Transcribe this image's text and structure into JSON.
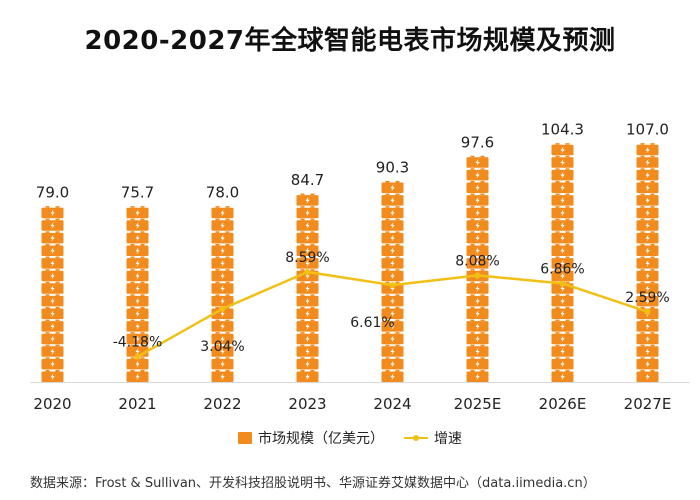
{
  "chart_data": {
    "type": "bar",
    "title": "2020-2027年全球智能电表市场规模及预测",
    "categories": [
      "2020",
      "2021",
      "2022",
      "2023",
      "2024",
      "2025E",
      "2026E",
      "2027E"
    ],
    "series": [
      {
        "name": "市场规模（亿美元）",
        "type": "bar",
        "values": [
          79.0,
          75.7,
          78.0,
          84.7,
          90.3,
          97.6,
          104.3,
          107.0
        ],
        "labels": [
          "79.0",
          "75.7",
          "78.0",
          "84.7",
          "90.3",
          "97.6",
          "104.3",
          "107.0"
        ]
      },
      {
        "name": "增速",
        "type": "line",
        "values": [
          null,
          -4.18,
          3.04,
          8.59,
          6.61,
          8.08,
          6.86,
          2.59
        ],
        "labels": [
          "",
          "-4.18%",
          "3.04%",
          "8.59%",
          "6.61%",
          "8.08%",
          "6.86%",
          "2.59%"
        ]
      }
    ],
    "bar_axis": {
      "min": 0,
      "max": 115
    },
    "line_axis": {
      "min": -8,
      "max": 30
    },
    "colors": {
      "bar": "#f28b1e",
      "bar_icon": "#ffffff",
      "line": "#f2c014",
      "axis": "#d9d9d9"
    },
    "legend_position": "bottom"
  },
  "source": "数据来源：Frost & Sullivan、开发科技招股说明书、华源证券艾媒数据中心（data.iimedia.cn）"
}
